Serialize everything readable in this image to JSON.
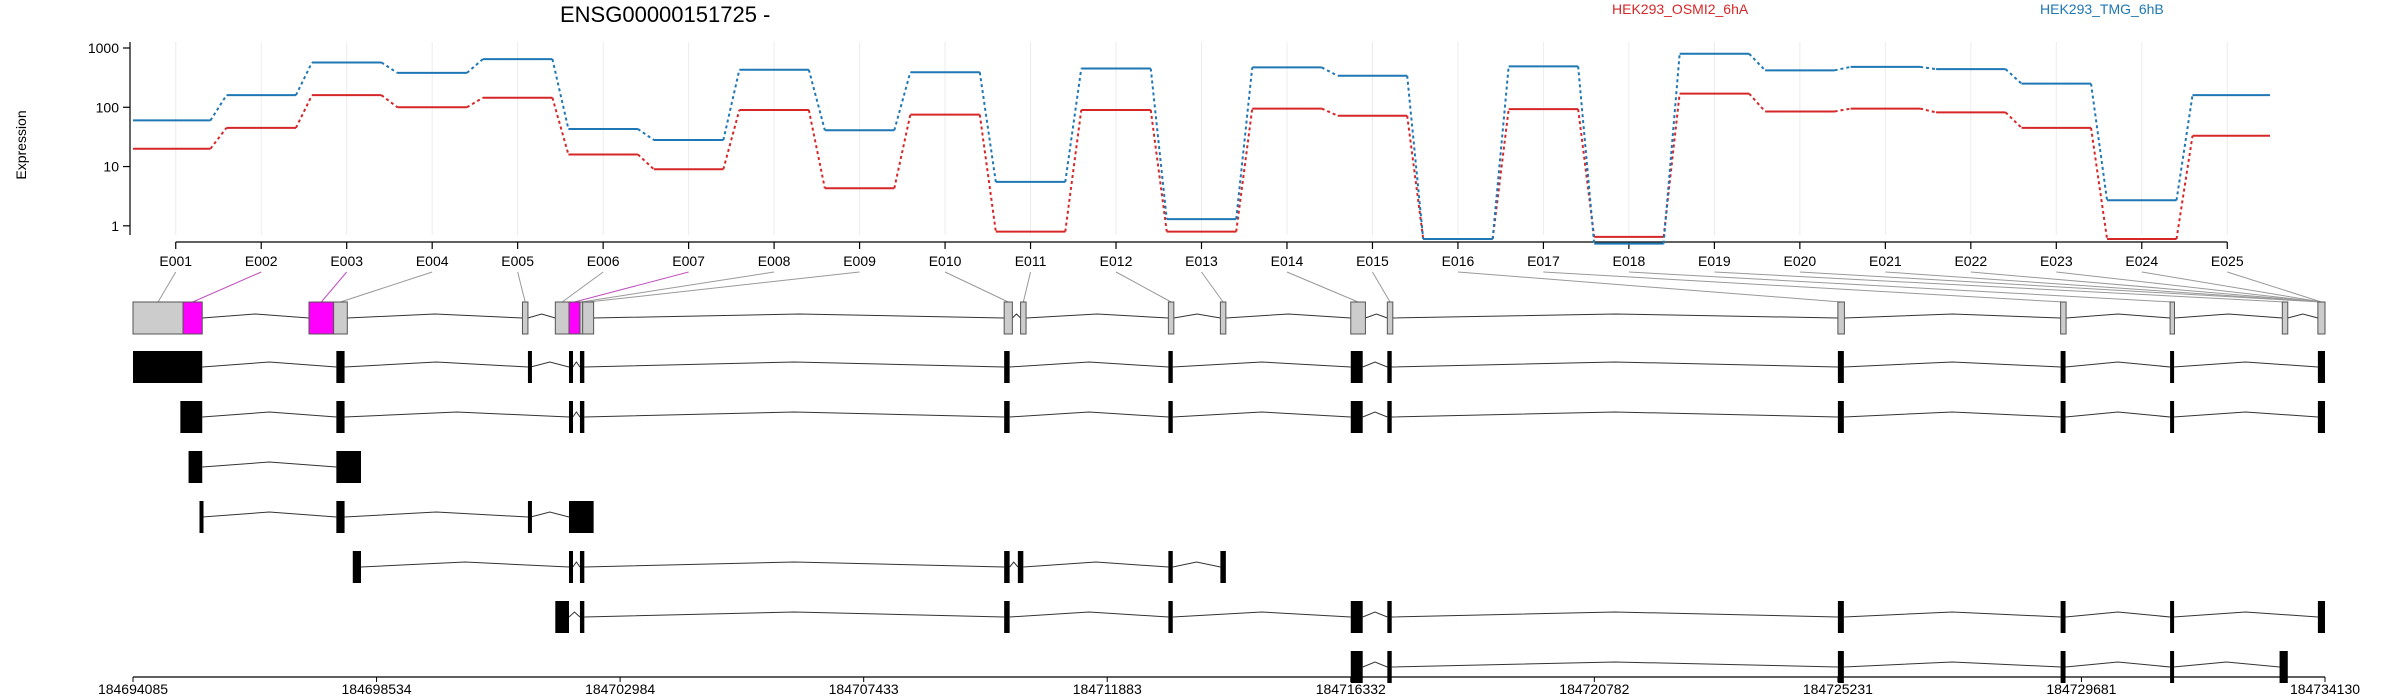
{
  "chart_data": {
    "type": "line",
    "title": "ENSG00000151725 -",
    "ylabel": "Expression",
    "y_scale": "log",
    "ylim": [
      0.5,
      1000
    ],
    "yticks": [
      1,
      10,
      100,
      1000
    ],
    "ytick_labels": [
      "1",
      "10",
      "100",
      "1000"
    ],
    "categories": [
      "E001",
      "E002",
      "E003",
      "E004",
      "E005",
      "E006",
      "E007",
      "E008",
      "E009",
      "E010",
      "E011",
      "E012",
      "E013",
      "E014",
      "E015",
      "E016",
      "E017",
      "E018",
      "E019",
      "E020",
      "E021",
      "E022",
      "E023",
      "E024",
      "E025"
    ],
    "series": [
      {
        "name": "HEK293_OSMI2_6hA",
        "color": "#d62728",
        "values": [
          20,
          45,
          160,
          100,
          145,
          16,
          9,
          90,
          4.3,
          75,
          0.8,
          90,
          0.8,
          95,
          72,
          0.6,
          93,
          0.65,
          170,
          85,
          95,
          82,
          45,
          0.6,
          33
        ]
      },
      {
        "name": "HEK293_TMG_6hB",
        "color": "#1f77b4",
        "values": [
          60,
          160,
          570,
          380,
          650,
          43,
          28,
          430,
          41,
          390,
          5.5,
          450,
          1.3,
          470,
          340,
          0.6,
          490,
          0.5,
          800,
          420,
          480,
          440,
          250,
          2.7,
          160
        ]
      }
    ],
    "genome_axis": {
      "range": [
        184694085,
        184734130
      ],
      "ticks": [
        "184694085",
        "184698534",
        "184702984",
        "184707433",
        "184711883",
        "184716332",
        "184720782",
        "184725231",
        "184729681",
        "184734130"
      ]
    },
    "exon_segments": [
      [
        184694085,
        184695000
      ],
      [
        184695000,
        184695350
      ],
      [
        184697300,
        184697750
      ],
      [
        184697750,
        184698000
      ],
      [
        184701200,
        184701300
      ],
      [
        184701800,
        184702050
      ],
      [
        184702050,
        184702250
      ],
      [
        184702250,
        184702300
      ],
      [
        184702300,
        184702500
      ],
      [
        184710000,
        184710150
      ],
      [
        184710300,
        184710400
      ],
      [
        184713000,
        184713100
      ],
      [
        184713950,
        184714050
      ],
      [
        184716332,
        184716600
      ],
      [
        184717000,
        184717100
      ],
      [
        184725231,
        184725350
      ],
      [
        184729300,
        184729400
      ],
      [
        184731300,
        184731380
      ],
      [
        184733350,
        184733450
      ],
      [
        184734000,
        184734130
      ]
    ],
    "highlighted_segments": [
      1,
      2,
      6
    ],
    "transcripts": [
      [
        [
          184694085,
          184695350
        ],
        [
          184697800,
          184697950
        ],
        [
          184701300,
          184701350
        ],
        [
          184702050,
          184702120
        ],
        [
          184702250,
          184702330
        ],
        [
          184710000,
          184710100
        ],
        [
          184713000,
          184713080
        ],
        [
          184716332,
          184716550
        ],
        [
          184717000,
          184717080
        ],
        [
          184725231,
          184725340
        ],
        [
          184729300,
          184729390
        ],
        [
          184731300,
          184731360
        ],
        [
          184734000,
          184734130
        ]
      ],
      [
        [
          184694950,
          184695350
        ],
        [
          184697800,
          184697950
        ],
        [
          184702050,
          184702120
        ],
        [
          184702250,
          184702330
        ],
        [
          184710000,
          184710100
        ],
        [
          184713000,
          184713080
        ],
        [
          184716332,
          184716550
        ],
        [
          184717000,
          184717080
        ],
        [
          184725231,
          184725340
        ],
        [
          184729300,
          184729390
        ],
        [
          184731300,
          184731360
        ],
        [
          184734000,
          184734130
        ]
      ],
      [
        [
          184695100,
          184695350
        ],
        [
          184697800,
          184698250
        ]
      ],
      [
        [
          184695300,
          184695350
        ],
        [
          184697800,
          184697950
        ],
        [
          184701300,
          184701350
        ],
        [
          184702050,
          184702500
        ]
      ],
      [
        [
          184698100,
          184698250
        ],
        [
          184702050,
          184702120
        ],
        [
          184702250,
          184702330
        ],
        [
          184710000,
          184710100
        ],
        [
          184710250,
          184710350
        ],
        [
          184713000,
          184713080
        ],
        [
          184713950,
          184714050
        ]
      ],
      [
        [
          184701800,
          184702050
        ],
        [
          184702250,
          184702330
        ],
        [
          184710000,
          184710100
        ],
        [
          184713000,
          184713080
        ],
        [
          184716332,
          184716550
        ],
        [
          184717000,
          184717080
        ],
        [
          184725231,
          184725340
        ],
        [
          184729300,
          184729390
        ],
        [
          184731300,
          184731360
        ],
        [
          184734000,
          184734130
        ]
      ],
      [
        [
          184716332,
          184716550
        ],
        [
          184717000,
          184717080
        ],
        [
          184725231,
          184725340
        ],
        [
          184729300,
          184729390
        ],
        [
          184731300,
          184731360
        ],
        [
          184733300,
          184733450
        ]
      ]
    ],
    "legend": [
      "HEK293_OSMI2_6hA",
      "HEK293_TMG_6hB"
    ],
    "legend_placement": "top-right",
    "grid": "vertical"
  }
}
